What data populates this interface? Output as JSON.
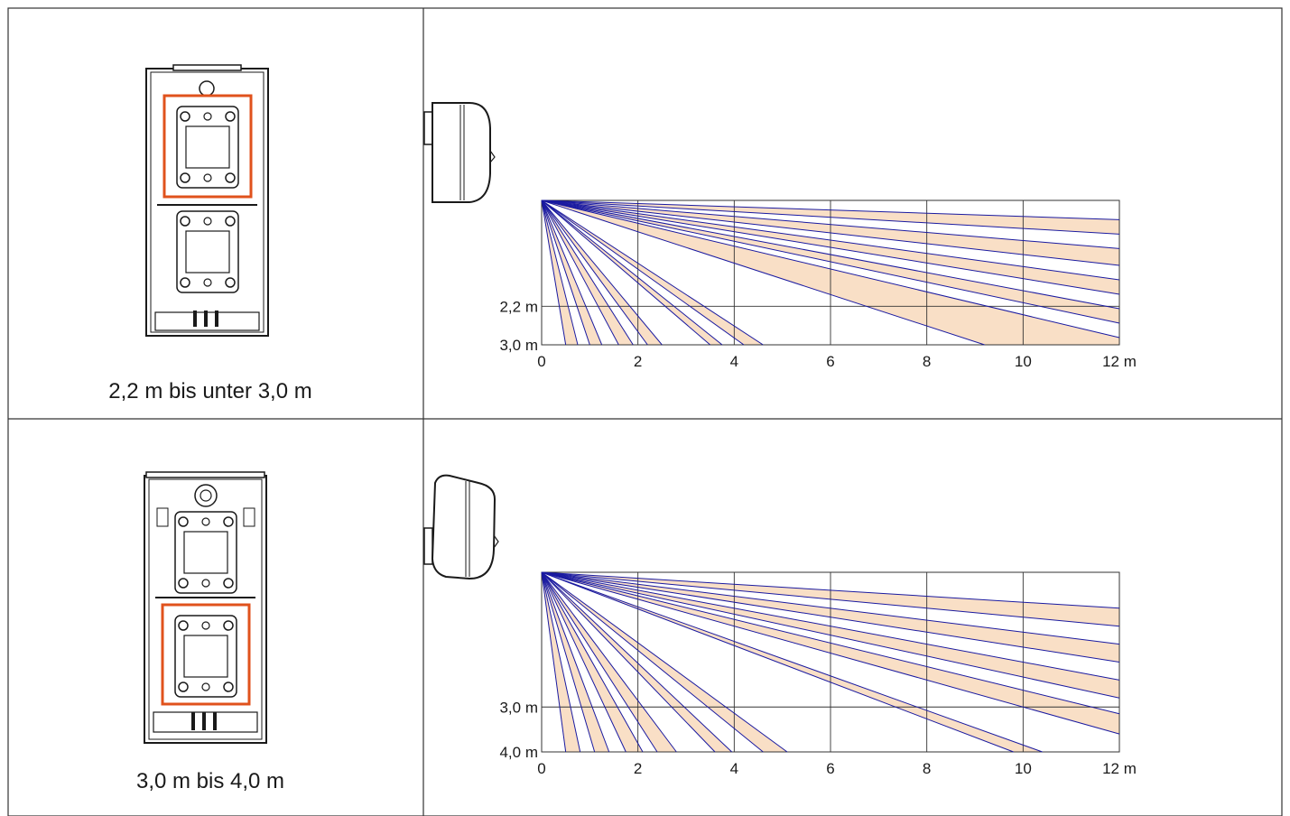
{
  "colors": {
    "frame": "#333333",
    "grid": "#333333",
    "ray": "#1a1aa0",
    "fill": "#f9dfc6",
    "highlight": "#e0521c",
    "device": "#1a1a1a"
  },
  "rows": [
    {
      "label": "2,2 m bis unter 3,0 m",
      "highlight_module": "upper",
      "chart_data": {
        "type": "diagram",
        "x_ticks": [
          "0",
          "2",
          "4",
          "6",
          "8",
          "10",
          "12 m"
        ],
        "y_ticks": [
          "2,2 m",
          "3,0 m"
        ],
        "xlim": [
          0,
          12
        ],
        "mount_height_m": 3.0,
        "reference_height_m": 2.2,
        "ray_ends": [
          {
            "x": 0.5,
            "y": 0
          },
          {
            "x": 0.75,
            "y": 0
          },
          {
            "x": 1.0,
            "y": 0
          },
          {
            "x": 1.25,
            "y": 0
          },
          {
            "x": 1.6,
            "y": 0
          },
          {
            "x": 1.9,
            "y": 0
          },
          {
            "x": 2.2,
            "y": 0
          },
          {
            "x": 2.5,
            "y": 0
          },
          {
            "x": 3.5,
            "y": 0
          },
          {
            "x": 3.75,
            "y": 0
          },
          {
            "x": 4.2,
            "y": 0
          },
          {
            "x": 4.6,
            "y": 0
          },
          {
            "x": 9.2,
            "y": 0
          },
          {
            "x": 12,
            "y": 0.15
          },
          {
            "x": 12,
            "y": 0.45
          },
          {
            "x": 12,
            "y": 0.75
          },
          {
            "x": 12,
            "y": 1.05
          },
          {
            "x": 12,
            "y": 1.35
          },
          {
            "x": 12,
            "y": 1.65
          },
          {
            "x": 12,
            "y": 2.0
          },
          {
            "x": 12,
            "y": 2.3
          },
          {
            "x": 12,
            "y": 2.6
          }
        ],
        "zones": [
          [
            0,
            1
          ],
          [
            2,
            3
          ],
          [
            4,
            5
          ],
          [
            6,
            7
          ],
          [
            8,
            9
          ],
          [
            10,
            11
          ],
          [
            12,
            13
          ],
          [
            14,
            15
          ],
          [
            16,
            17
          ],
          [
            18,
            19
          ],
          [
            20,
            21
          ]
        ]
      }
    },
    {
      "label": "3,0 m bis 4,0 m",
      "highlight_module": "lower",
      "chart_data": {
        "type": "diagram",
        "x_ticks": [
          "0",
          "2",
          "4",
          "6",
          "8",
          "10",
          "12 m"
        ],
        "y_ticks": [
          "3,0 m",
          "4,0 m"
        ],
        "xlim": [
          0,
          12
        ],
        "mount_height_m": 4.0,
        "reference_height_m": 3.0,
        "ray_ends": [
          {
            "x": 0.5,
            "y": 0
          },
          {
            "x": 0.8,
            "y": 0
          },
          {
            "x": 1.1,
            "y": 0
          },
          {
            "x": 1.4,
            "y": 0
          },
          {
            "x": 1.75,
            "y": 0
          },
          {
            "x": 2.1,
            "y": 0
          },
          {
            "x": 2.4,
            "y": 0
          },
          {
            "x": 2.8,
            "y": 0
          },
          {
            "x": 3.6,
            "y": 0
          },
          {
            "x": 3.95,
            "y": 0
          },
          {
            "x": 4.6,
            "y": 0
          },
          {
            "x": 5.1,
            "y": 0
          },
          {
            "x": 9.8,
            "y": 0
          },
          {
            "x": 10.4,
            "y": 0
          },
          {
            "x": 12,
            "y": 0.4
          },
          {
            "x": 12,
            "y": 0.85
          },
          {
            "x": 12,
            "y": 1.2
          },
          {
            "x": 12,
            "y": 1.6
          },
          {
            "x": 12,
            "y": 2.0
          },
          {
            "x": 12,
            "y": 2.4
          },
          {
            "x": 12,
            "y": 2.8
          },
          {
            "x": 12,
            "y": 3.2
          }
        ],
        "zones": [
          [
            0,
            1
          ],
          [
            2,
            3
          ],
          [
            4,
            5
          ],
          [
            6,
            7
          ],
          [
            8,
            9
          ],
          [
            10,
            11
          ],
          [
            12,
            13
          ],
          [
            14,
            15
          ],
          [
            16,
            17
          ],
          [
            18,
            19
          ],
          [
            20,
            21
          ]
        ]
      }
    }
  ]
}
